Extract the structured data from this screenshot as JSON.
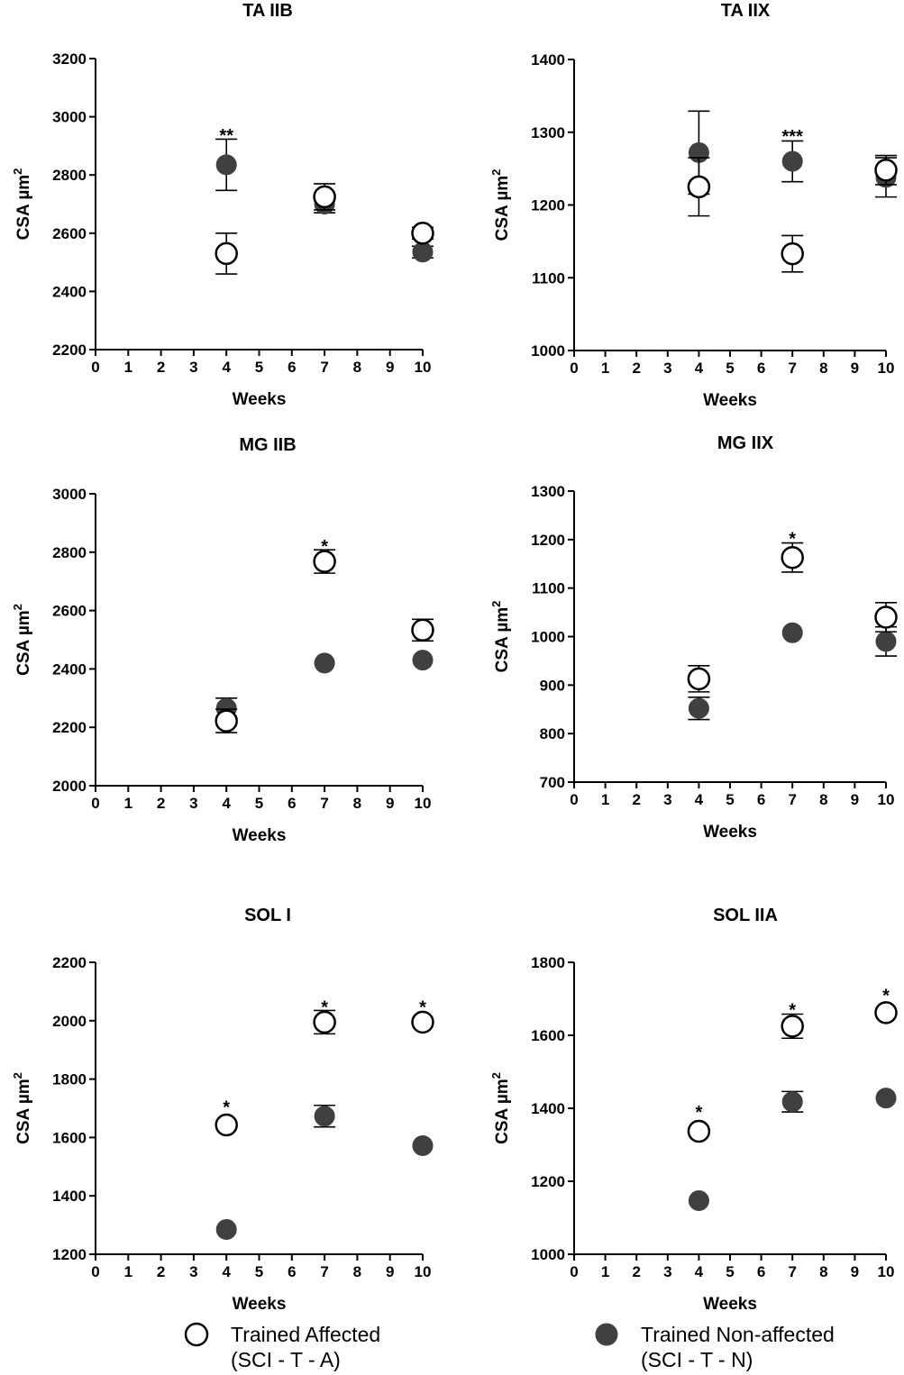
{
  "chart_data": [
    {
      "type": "scatter",
      "title": "TA IIB",
      "xlabel": "Weeks",
      "ylabel": "CSA µm",
      "ylabel_sup": "2",
      "xlim": [
        0,
        10
      ],
      "ylim": [
        2200,
        3200
      ],
      "xticks": [
        0,
        1,
        2,
        3,
        4,
        5,
        6,
        7,
        8,
        9,
        10
      ],
      "yticks": [
        2200,
        2400,
        2600,
        2800,
        3000,
        3200
      ],
      "x": [
        4,
        7,
        10
      ],
      "series": [
        {
          "name": "Trained Affected",
          "values": [
            2530,
            2725,
            2600
          ],
          "err": [
            70,
            45,
            20
          ]
        },
        {
          "name": "Trained Non-affected",
          "values": [
            2835,
            2700,
            2535
          ],
          "err": [
            88,
            30,
            20
          ]
        }
      ],
      "annotations": [
        {
          "x": 4,
          "y": 2925,
          "text": "**"
        }
      ]
    },
    {
      "type": "scatter",
      "title": "TA IIX",
      "xlabel": "Weeks",
      "ylabel": "CSA µm",
      "ylabel_sup": "2",
      "xlim": [
        0,
        10
      ],
      "ylim": [
        1000,
        1400
      ],
      "xticks": [
        0,
        1,
        2,
        3,
        4,
        5,
        6,
        7,
        8,
        9,
        10
      ],
      "yticks": [
        1000,
        1100,
        1200,
        1300,
        1400
      ],
      "x": [
        4,
        7,
        10
      ],
      "series": [
        {
          "name": "Trained Affected",
          "values": [
            1225,
            1133,
            1248
          ],
          "err": [
            40,
            25,
            20
          ]
        },
        {
          "name": "Trained Non-affected",
          "values": [
            1272,
            1260,
            1238
          ],
          "err": [
            57,
            28,
            27
          ]
        }
      ],
      "annotations": [
        {
          "x": 7,
          "y": 1290,
          "text": "***"
        }
      ]
    },
    {
      "type": "scatter",
      "title": "MG IIB",
      "xlabel": "Weeks",
      "ylabel": "CSA µm",
      "ylabel_sup": "2",
      "xlim": [
        0,
        10
      ],
      "ylim": [
        2000,
        3000
      ],
      "xticks": [
        0,
        1,
        2,
        3,
        4,
        5,
        6,
        7,
        8,
        9,
        10
      ],
      "yticks": [
        2000,
        2200,
        2400,
        2600,
        2800,
        3000
      ],
      "x": [
        4,
        7,
        10
      ],
      "series": [
        {
          "name": "Trained Affected",
          "values": [
            2222,
            2768,
            2533
          ],
          "err": [
            40,
            40,
            37
          ]
        },
        {
          "name": "Trained Non-affected",
          "values": [
            2265,
            2420,
            2430
          ],
          "err": [
            35,
            0,
            0
          ]
        }
      ],
      "annotations": [
        {
          "x": 7,
          "y": 2808,
          "text": "*"
        }
      ]
    },
    {
      "type": "scatter",
      "title": "MG IIX",
      "xlabel": "Weeks",
      "ylabel": "CSA µm",
      "ylabel_sup": "2",
      "xlim": [
        0,
        10
      ],
      "ylim": [
        700,
        1300
      ],
      "xticks": [
        0,
        1,
        2,
        3,
        4,
        5,
        6,
        7,
        8,
        9,
        10
      ],
      "yticks": [
        700,
        800,
        900,
        1000,
        1100,
        1200,
        1300
      ],
      "x": [
        4,
        7,
        10
      ],
      "series": [
        {
          "name": "Trained Affected",
          "values": [
            913,
            1163,
            1040
          ],
          "err": [
            27,
            30,
            30
          ]
        },
        {
          "name": "Trained Non-affected",
          "values": [
            852,
            1008,
            990
          ],
          "err": [
            23,
            0,
            30
          ]
        }
      ],
      "annotations": [
        {
          "x": 7,
          "y": 1195,
          "text": "*"
        }
      ]
    },
    {
      "type": "scatter",
      "title": "SOL I",
      "xlabel": "Weeks",
      "ylabel": "CSA µm",
      "ylabel_sup": "2",
      "xlim": [
        0,
        10
      ],
      "ylim": [
        1200,
        2200
      ],
      "xticks": [
        0,
        1,
        2,
        3,
        4,
        5,
        6,
        7,
        8,
        9,
        10
      ],
      "yticks": [
        1200,
        1400,
        1600,
        1800,
        2000,
        2200
      ],
      "x": [
        4,
        7,
        10
      ],
      "series": [
        {
          "name": "Trained Affected",
          "values": [
            1643,
            1995,
            1995
          ],
          "err": [
            0,
            40,
            0
          ]
        },
        {
          "name": "Trained Non-affected",
          "values": [
            1285,
            1673,
            1572
          ],
          "err": [
            0,
            37,
            0
          ]
        }
      ],
      "annotations": [
        {
          "x": 4,
          "y": 1693,
          "text": "*"
        },
        {
          "x": 7,
          "y": 2035,
          "text": "*"
        },
        {
          "x": 10,
          "y": 2035,
          "text": "*"
        }
      ]
    },
    {
      "type": "scatter",
      "title": "SOL IIA",
      "xlabel": "Weeks",
      "ylabel": "CSA µm",
      "ylabel_sup": "2",
      "xlim": [
        0,
        10
      ],
      "ylim": [
        1000,
        1800
      ],
      "xticks": [
        0,
        1,
        2,
        3,
        4,
        5,
        6,
        7,
        8,
        9,
        10
      ],
      "yticks": [
        1000,
        1200,
        1400,
        1600,
        1800
      ],
      "x": [
        4,
        7,
        10
      ],
      "series": [
        {
          "name": "Trained Affected",
          "values": [
            1337,
            1625,
            1662
          ],
          "err": [
            0,
            33,
            0
          ]
        },
        {
          "name": "Trained Non-affected",
          "values": [
            1147,
            1418,
            1428
          ],
          "err": [
            0,
            28,
            0
          ]
        }
      ],
      "annotations": [
        {
          "x": 4,
          "y": 1380,
          "text": "*"
        },
        {
          "x": 7,
          "y": 1660,
          "text": "*"
        },
        {
          "x": 10,
          "y": 1700,
          "text": "*"
        }
      ]
    }
  ],
  "legend": {
    "placement": "bottom",
    "items": [
      {
        "marker": "open-circle",
        "line1": "Trained Affected",
        "line2": "(SCI - T - A)"
      },
      {
        "marker": "filled-circle",
        "line1": "Trained Non-affected",
        "line2": "(SCI - T - N)"
      }
    ]
  },
  "colors": {
    "filled": "#404040",
    "open_stroke": "#000000",
    "open_fill": "#ffffff",
    "axis": "#000000"
  }
}
